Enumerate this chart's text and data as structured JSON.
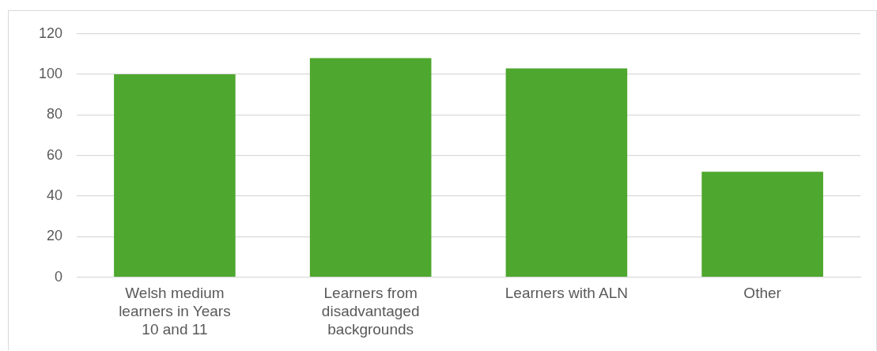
{
  "chart_data": {
    "type": "bar",
    "categories": [
      "Welsh medium learners in Years 10 and 11",
      "Learners from disadvantaged backgrounds",
      "Learners with ALN",
      "Other"
    ],
    "values": [
      100,
      108,
      103,
      52
    ],
    "color": "#4ea72e",
    "ylim": [
      0,
      120
    ],
    "yticks": [
      0,
      20,
      40,
      60,
      80,
      100,
      120
    ],
    "grid": "y"
  }
}
